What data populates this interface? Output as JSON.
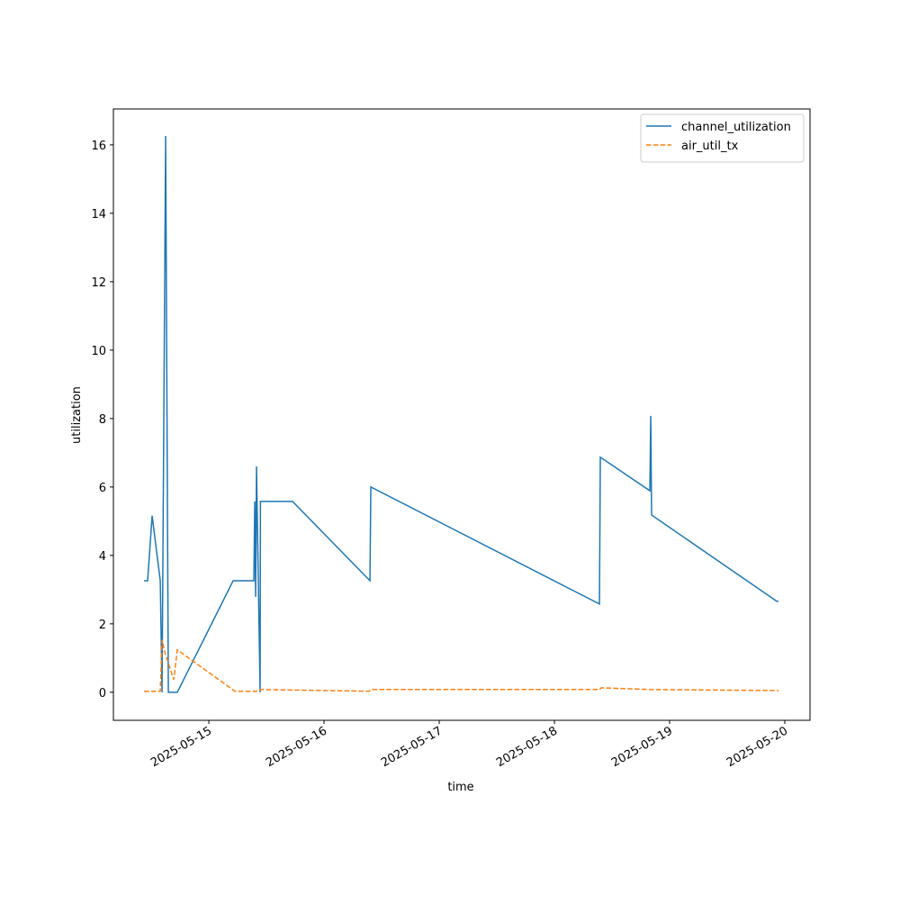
{
  "chart_data": {
    "type": "line",
    "xlabel": "time",
    "ylabel": "utilization",
    "series": [
      {
        "name": "channel_utilization",
        "color": "#1f77b4",
        "dash": "solid",
        "x": [
          "2025-05-14T10:30",
          "2025-05-14T11:15",
          "2025-05-14T12:11",
          "2025-05-14T13:53",
          "2025-05-14T14:15",
          "2025-05-14T15:00",
          "2025-05-14T15:34",
          "2025-05-14T17:26",
          "2025-05-15T05:04",
          "2025-05-15T09:23",
          "2025-05-15T09:34",
          "2025-05-15T09:45",
          "2025-05-15T09:56",
          "2025-05-15T10:41",
          "2025-05-15T10:45",
          "2025-05-15T17:26",
          "2025-05-16T09:34",
          "2025-05-16T09:45",
          "2025-05-18T09:23",
          "2025-05-18T09:34",
          "2025-05-18T19:53",
          "2025-05-18T20:04",
          "2025-05-18T20:15",
          "2025-05-19T22:19",
          "2025-05-19T22:41"
        ],
        "values": [
          3.26,
          3.26,
          5.16,
          3.26,
          0,
          16.26,
          0,
          0,
          3.26,
          3.26,
          5.58,
          2.79,
          6.6,
          0,
          5.58,
          5.58,
          3.26,
          6.0,
          2.58,
          6.87,
          5.89,
          8.08,
          5.18,
          2.66,
          2.66
        ]
      },
      {
        "name": "air_util_tx",
        "color": "#ff7f0e",
        "dash": "dashed",
        "x": [
          "2025-05-14T10:30",
          "2025-05-14T13:53",
          "2025-05-14T14:15",
          "2025-05-14T14:49",
          "2025-05-14T16:41",
          "2025-05-14T17:26",
          "2025-05-15T05:26",
          "2025-05-15T09:56",
          "2025-05-15T10:19",
          "2025-05-16T09:23",
          "2025-05-16T09:56",
          "2025-05-18T09:23",
          "2025-05-18T09:45",
          "2025-05-18T19:53",
          "2025-05-19T22:41"
        ],
        "values": [
          0.03,
          0.03,
          1.53,
          1.18,
          0.37,
          1.24,
          0.03,
          0.03,
          0.08,
          0.03,
          0.08,
          0.08,
          0.13,
          0.08,
          0.05
        ]
      }
    ],
    "xlim": [
      "2025-05-14T04:07",
      "2025-05-20T05:15"
    ],
    "xticks": [
      "2025-05-15",
      "2025-05-16",
      "2025-05-17",
      "2025-05-18",
      "2025-05-19",
      "2025-05-20"
    ],
    "ylim": [
      -0.82,
      17.05
    ],
    "yticks": [
      0,
      2,
      4,
      6,
      8,
      10,
      12,
      14,
      16
    ],
    "legend": "upper right"
  }
}
